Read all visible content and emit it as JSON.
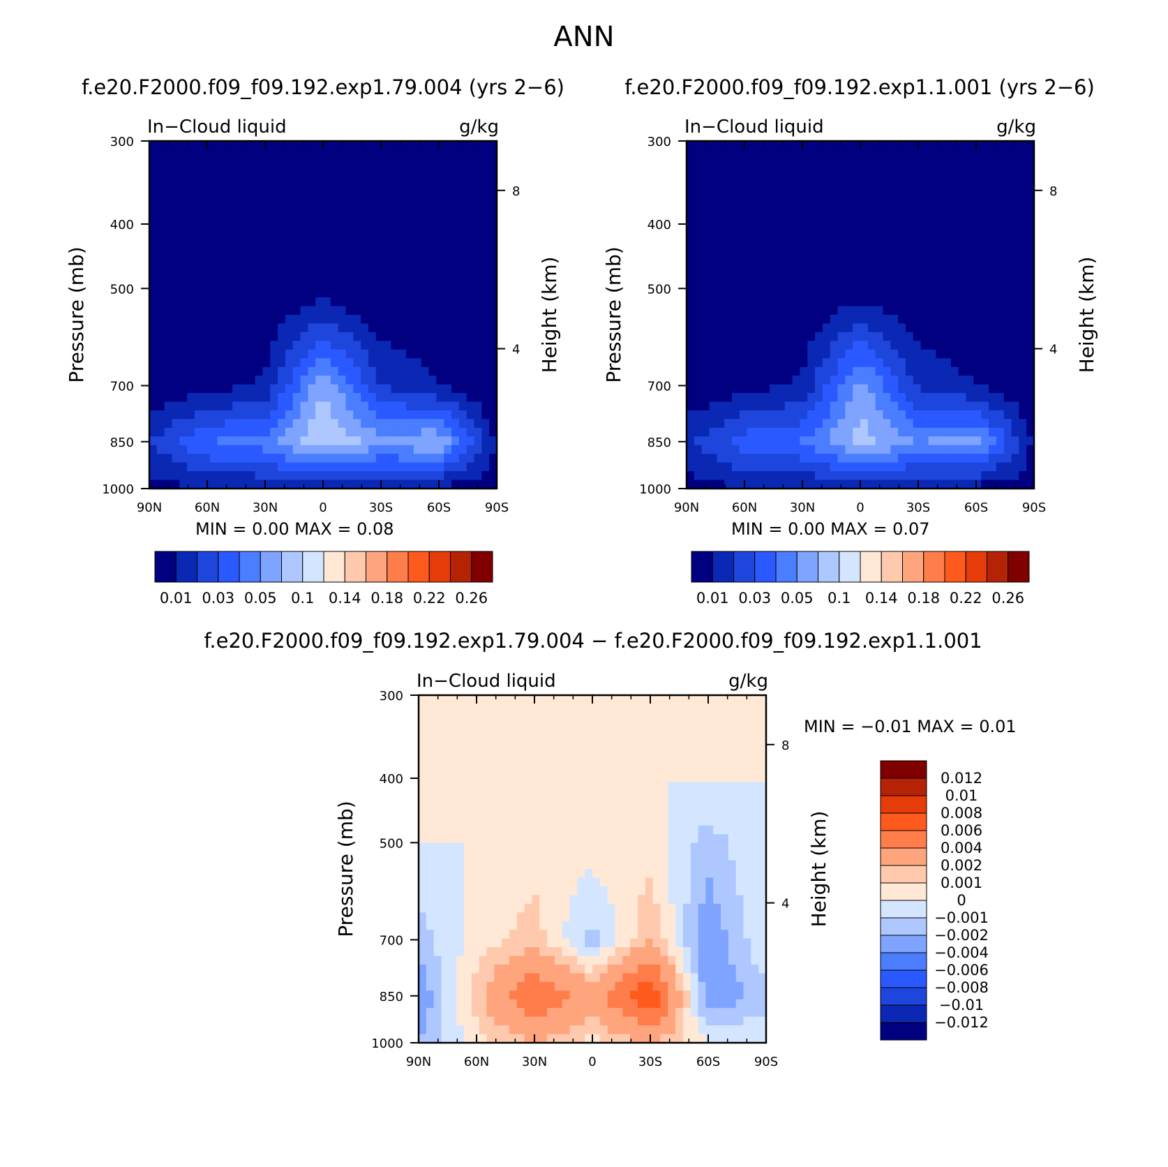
{
  "figure": {
    "title": "ANN"
  },
  "chart_data": [
    {
      "type": "heatmap",
      "title": "f.e20.F2000.f09_f09.192.exp1.79.004 (yrs 2−6)",
      "left_label": "In−Cloud liquid",
      "right_label": "g/kg",
      "xlabel": "",
      "ylabel": "Pressure (mb)",
      "ylabel_right": "Height (km)",
      "x_ticks": [
        "90N",
        "60N",
        "30N",
        "0",
        "30S",
        "60S",
        "90S"
      ],
      "y_ticks": [
        "300",
        "400",
        "500",
        "700",
        "850",
        "1000"
      ],
      "y_ticks_right": [
        "8",
        "4"
      ],
      "stats_text": "MIN =     0.00   MAX =     0.08",
      "min": 0.0,
      "max": 0.08,
      "colorbar_levels": [
        "0.01",
        "0.03",
        "0.05",
        "0.1",
        "0.14",
        "0.18",
        "0.22",
        "0.26"
      ],
      "colors": [
        "#000080",
        "#0a28b4",
        "#1e46dc",
        "#2a5aff",
        "#4b7dff",
        "#7ea4ff",
        "#aec8ff",
        "#d4e6ff",
        "#ffe8d6",
        "#ffc9ad",
        "#ffa57d",
        "#ff7d4b",
        "#ff5a1e",
        "#e53c0a",
        "#b42306",
        "#800000"
      ],
      "x": [
        "90N",
        "60N",
        "30N",
        "0",
        "30S",
        "60S",
        "90S"
      ],
      "y": [
        "300",
        "400",
        "500",
        "700",
        "850",
        "1000"
      ],
      "z": [
        [
          0.0,
          0.0,
          0.0,
          0.0,
          0.0,
          0.0,
          0.0
        ],
        [
          0.0,
          0.0,
          0.0,
          0.0,
          0.0,
          0.0,
          0.0
        ],
        [
          0.0,
          0.0,
          0.001,
          0.004,
          0.0,
          0.0,
          0.0
        ],
        [
          0.001,
          0.006,
          0.012,
          0.06,
          0.02,
          0.01,
          0.0
        ],
        [
          0.02,
          0.04,
          0.045,
          0.07,
          0.055,
          0.06,
          0.008
        ],
        [
          0.005,
          0.01,
          0.01,
          0.01,
          0.008,
          0.006,
          0.004
        ]
      ]
    },
    {
      "type": "heatmap",
      "title": "f.e20.F2000.f09_f09.192.exp1.1.001 (yrs 2−6)",
      "left_label": "In−Cloud liquid",
      "right_label": "g/kg",
      "xlabel": "",
      "ylabel": "Pressure (mb)",
      "ylabel_right": "Height (km)",
      "x_ticks": [
        "90N",
        "60N",
        "30N",
        "0",
        "30S",
        "60S",
        "90S"
      ],
      "y_ticks": [
        "300",
        "400",
        "500",
        "700",
        "850",
        "1000"
      ],
      "y_ticks_right": [
        "8",
        "4"
      ],
      "stats_text": "MIN =     0.00   MAX =     0.07",
      "min": 0.0,
      "max": 0.07,
      "colorbar_levels": [
        "0.01",
        "0.03",
        "0.05",
        "0.1",
        "0.14",
        "0.18",
        "0.22",
        "0.26"
      ],
      "colors": [
        "#000080",
        "#0a28b4",
        "#1e46dc",
        "#2a5aff",
        "#4b7dff",
        "#7ea4ff",
        "#aec8ff",
        "#d4e6ff",
        "#ffe8d6",
        "#ffc9ad",
        "#ffa57d",
        "#ff7d4b",
        "#ff5a1e",
        "#e53c0a",
        "#b42306",
        "#800000"
      ],
      "x": [
        "90N",
        "60N",
        "30N",
        "0",
        "30S",
        "60S",
        "90S"
      ],
      "y": [
        "300",
        "400",
        "500",
        "700",
        "850",
        "1000"
      ],
      "z": [
        [
          0.0,
          0.0,
          0.0,
          0.0,
          0.0,
          0.0,
          0.0
        ],
        [
          0.0,
          0.0,
          0.0,
          0.0,
          0.0,
          0.0,
          0.0
        ],
        [
          0.0,
          0.0,
          0.001,
          0.004,
          0.0,
          0.0,
          0.0
        ],
        [
          0.001,
          0.006,
          0.012,
          0.055,
          0.018,
          0.01,
          0.0
        ],
        [
          0.018,
          0.035,
          0.04,
          0.065,
          0.05,
          0.055,
          0.008
        ],
        [
          0.005,
          0.01,
          0.01,
          0.01,
          0.008,
          0.006,
          0.004
        ]
      ]
    },
    {
      "type": "heatmap",
      "title": "f.e20.F2000.f09_f09.192.exp1.79.004 − f.e20.F2000.f09_f09.192.exp1.1.001",
      "left_label": "In−Cloud liquid",
      "right_label": "g/kg",
      "xlabel": "",
      "ylabel": "Pressure (mb)",
      "ylabel_right": "Height (km)",
      "x_ticks": [
        "90N",
        "60N",
        "30N",
        "0",
        "30S",
        "60S",
        "90S"
      ],
      "y_ticks": [
        "300",
        "400",
        "500",
        "700",
        "850",
        "1000"
      ],
      "y_ticks_right": [
        "8",
        "4"
      ],
      "stats_text": "MIN =    −0.01   MAX =     0.01",
      "min": -0.01,
      "max": 0.01,
      "colorbar_levels": [
        "0.012",
        "0.01",
        "0.008",
        "0.006",
        "0.004",
        "0.002",
        "0.001",
        "0",
        "−0.001",
        "−0.002",
        "−0.004",
        "−0.006",
        "−0.008",
        "−0.01",
        "−0.012"
      ],
      "colors": [
        "#800000",
        "#b42306",
        "#e53c0a",
        "#ff5a1e",
        "#ff7d4b",
        "#ffa57d",
        "#ffc9ad",
        "#ffe8d6",
        "#d4e6ff",
        "#aec8ff",
        "#7ea4ff",
        "#4b7dff",
        "#2a5aff",
        "#1e46dc",
        "#0a28b4",
        "#000080"
      ],
      "x": [
        "90N",
        "60N",
        "30N",
        "0",
        "30S",
        "60S",
        "90S"
      ],
      "y": [
        "300",
        "400",
        "500",
        "700",
        "850",
        "1000"
      ],
      "z": [
        [
          0.0,
          0.0,
          0.0005,
          0.0,
          0.0005,
          0.0,
          0.0
        ],
        [
          0.0,
          0.0,
          0.0005,
          0.0,
          0.0,
          0.0,
          0.0
        ],
        [
          0.0,
          0.0,
          0.0005,
          0.0005,
          0.0005,
          -0.0015,
          0.0
        ],
        [
          -0.0015,
          0.0005,
          0.0015,
          -0.0015,
          0.002,
          -0.003,
          0.0
        ],
        [
          -0.003,
          0.0015,
          0.006,
          0.003,
          0.008,
          -0.003,
          -0.0015
        ],
        [
          -0.002,
          0.0005,
          0.002,
          0.0005,
          0.002,
          0.0,
          0.0
        ]
      ]
    }
  ]
}
